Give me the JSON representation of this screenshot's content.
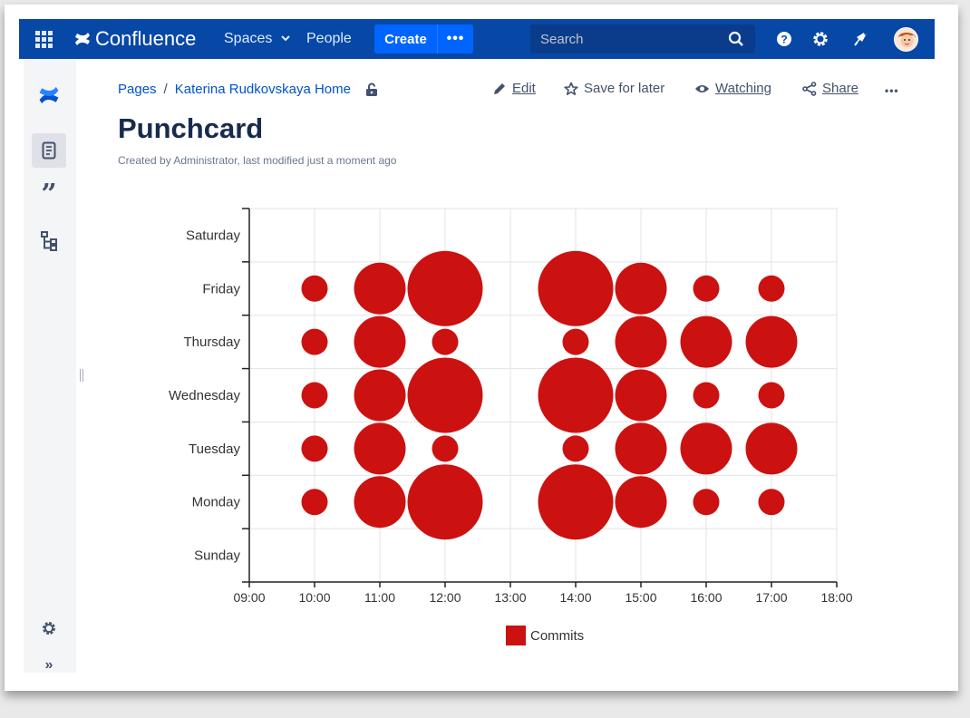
{
  "topnav": {
    "app_name": "Confluence",
    "spaces_label": "Spaces",
    "people_label": "People",
    "create_label": "Create",
    "more_label": "•••",
    "search_placeholder": "Search",
    "brand_color": "#0747a6",
    "icons": [
      "app-switcher-icon",
      "confluence-logo-icon",
      "chevron-down-icon",
      "search-icon",
      "help-icon",
      "gear-icon",
      "notifications-icon",
      "avatar"
    ]
  },
  "sidebar": {
    "icons": [
      "confluence-logo-icon",
      "page-icon",
      "quote-icon",
      "hierarchy-icon",
      "gear-icon",
      "expand-icon"
    ],
    "expand_label": "»"
  },
  "breadcrumb": {
    "items": [
      "Pages",
      "Katerina Rudkovskaya Home"
    ],
    "separator": "/"
  },
  "actions": {
    "edit": "Edit",
    "save_for_later": "Save for later",
    "watching": "Watching",
    "share": "Share",
    "more": "•••"
  },
  "page": {
    "title": "Punchcard",
    "byline": "Created by Administrator, last modified just a moment ago"
  },
  "chart_data": {
    "type": "scatter",
    "title": "",
    "xlabel": "",
    "ylabel": "",
    "x_ticks": [
      "09:00",
      "10:00",
      "11:00",
      "12:00",
      "13:00",
      "14:00",
      "15:00",
      "16:00",
      "17:00",
      "18:00"
    ],
    "y_categories": [
      "Sunday",
      "Monday",
      "Tuesday",
      "Wednesday",
      "Thursday",
      "Friday",
      "Saturday"
    ],
    "xlim": [
      9,
      18
    ],
    "grid": true,
    "legend": {
      "position": "bottom",
      "entries": [
        "Commits"
      ]
    },
    "series": [
      {
        "name": "Commits",
        "color": "#cc1111",
        "points": [
          {
            "day": "Monday",
            "hour": 10,
            "size": 1
          },
          {
            "day": "Monday",
            "hour": 11,
            "size": 2
          },
          {
            "day": "Monday",
            "hour": 12,
            "size": 3
          },
          {
            "day": "Monday",
            "hour": 14,
            "size": 3
          },
          {
            "day": "Monday",
            "hour": 15,
            "size": 2
          },
          {
            "day": "Monday",
            "hour": 16,
            "size": 1
          },
          {
            "day": "Monday",
            "hour": 17,
            "size": 1
          },
          {
            "day": "Tuesday",
            "hour": 10,
            "size": 1
          },
          {
            "day": "Tuesday",
            "hour": 11,
            "size": 2
          },
          {
            "day": "Tuesday",
            "hour": 12,
            "size": 1
          },
          {
            "day": "Tuesday",
            "hour": 14,
            "size": 1
          },
          {
            "day": "Tuesday",
            "hour": 15,
            "size": 2
          },
          {
            "day": "Tuesday",
            "hour": 16,
            "size": 2
          },
          {
            "day": "Tuesday",
            "hour": 17,
            "size": 2
          },
          {
            "day": "Wednesday",
            "hour": 10,
            "size": 1
          },
          {
            "day": "Wednesday",
            "hour": 11,
            "size": 2
          },
          {
            "day": "Wednesday",
            "hour": 12,
            "size": 3
          },
          {
            "day": "Wednesday",
            "hour": 14,
            "size": 3
          },
          {
            "day": "Wednesday",
            "hour": 15,
            "size": 2
          },
          {
            "day": "Wednesday",
            "hour": 16,
            "size": 1
          },
          {
            "day": "Wednesday",
            "hour": 17,
            "size": 1
          },
          {
            "day": "Thursday",
            "hour": 10,
            "size": 1
          },
          {
            "day": "Thursday",
            "hour": 11,
            "size": 2
          },
          {
            "day": "Thursday",
            "hour": 12,
            "size": 1
          },
          {
            "day": "Thursday",
            "hour": 14,
            "size": 1
          },
          {
            "day": "Thursday",
            "hour": 15,
            "size": 2
          },
          {
            "day": "Thursday",
            "hour": 16,
            "size": 2
          },
          {
            "day": "Thursday",
            "hour": 17,
            "size": 2
          },
          {
            "day": "Friday",
            "hour": 10,
            "size": 1
          },
          {
            "day": "Friday",
            "hour": 11,
            "size": 2
          },
          {
            "day": "Friday",
            "hour": 12,
            "size": 3
          },
          {
            "day": "Friday",
            "hour": 14,
            "size": 3
          },
          {
            "day": "Friday",
            "hour": 15,
            "size": 2
          },
          {
            "day": "Friday",
            "hour": 16,
            "size": 1
          },
          {
            "day": "Friday",
            "hour": 17,
            "size": 1
          }
        ]
      }
    ]
  }
}
